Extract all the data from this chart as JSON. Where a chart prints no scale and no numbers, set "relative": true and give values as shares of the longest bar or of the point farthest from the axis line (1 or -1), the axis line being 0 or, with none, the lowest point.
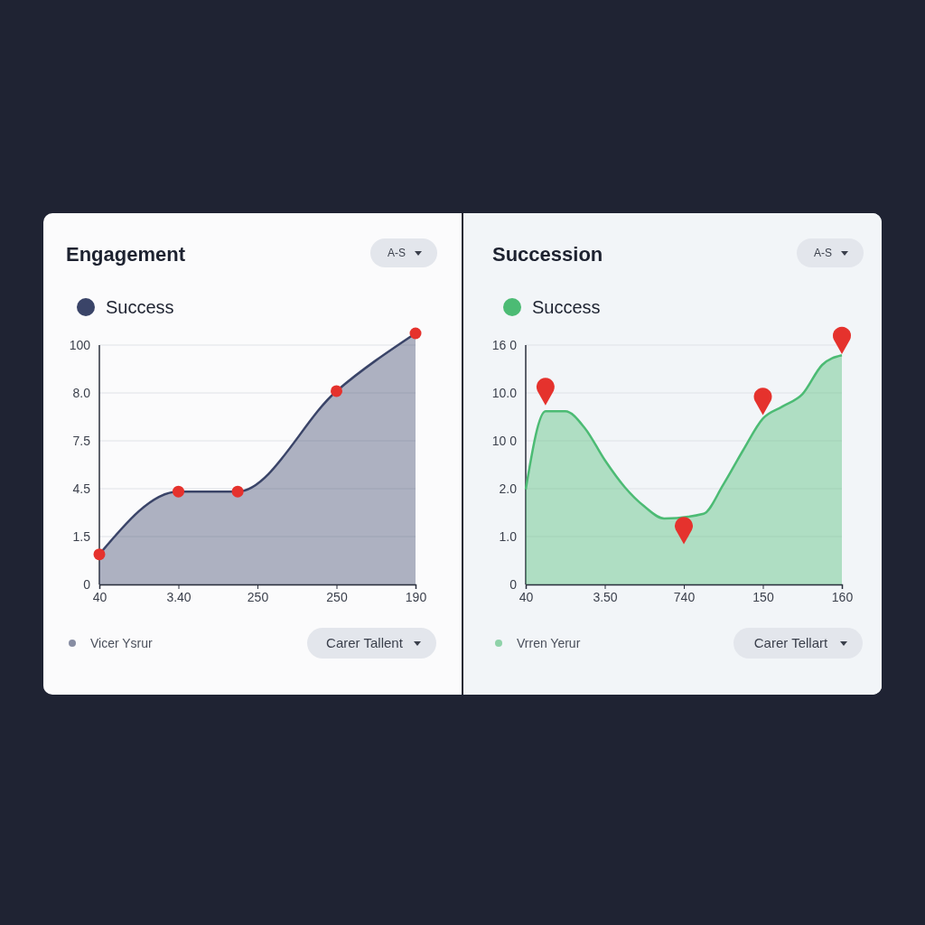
{
  "chart_data": [
    {
      "type": "area",
      "title": "Engagement",
      "xlabel": "Vicer Ysrur",
      "annotations": [
        "A-S",
        "Carer Tallent",
        "100",
        "8.0",
        "7.5",
        "4.5",
        "1.5",
        "0"
      ],
      "legend": "top left",
      "grid": "y",
      "relative": true,
      "categories": [
        "40",
        null,
        null,
        null,
        "3.40",
        null,
        null,
        null,
        "250",
        null,
        null,
        null,
        "250",
        null,
        null,
        null,
        "190"
      ],
      "series": [
        {
          "name": "Success",
          "color": "#3a4468",
          "values": [
            0.12,
            null,
            null,
            null,
            0.37,
            null,
            null,
            0.37,
            null,
            null,
            null,
            null,
            0.77,
            null,
            null,
            null,
            1
          ]
        },
        {
          "type": "scatter",
          "marker": "circle",
          "color": "#e5322d",
          "values": [
            0.12,
            null,
            null,
            null,
            0.37,
            null,
            null,
            0.37,
            null,
            null,
            null,
            null,
            0.77,
            null,
            null,
            null,
            1
          ]
        }
      ]
    },
    {
      "type": "area",
      "title": "Succession",
      "xlabel": "Vrren Yerur",
      "annotations": [
        "A-S",
        "Carer Tellart",
        "16 0",
        "10.0",
        "10 0",
        "2.0",
        "1.0",
        "0"
      ],
      "legend": "top left",
      "grid": "y",
      "relative": true,
      "categories": [
        "40",
        null,
        null,
        null,
        "3.50",
        null,
        null,
        null,
        "740",
        null,
        null,
        null,
        "150",
        null,
        null,
        null,
        "160"
      ],
      "series": [
        {
          "name": "Success",
          "color": "#4cbb74",
          "values": [
            0.39,
            0.71,
            0.71,
            0.64,
            0.51,
            0.4,
            0.32,
            0.27,
            null,
            0.29,
            0.41,
            0.55,
            0.68,
            0.73,
            0.78,
            0.9,
            0.94
          ]
        },
        {
          "type": "scatter",
          "color": "#e5322d",
          "values": [
            null,
            0.79,
            null,
            null,
            null,
            null,
            null,
            null,
            0.22,
            null,
            null,
            null,
            0.75,
            null,
            null,
            null,
            1
          ]
        }
      ]
    }
  ]
}
